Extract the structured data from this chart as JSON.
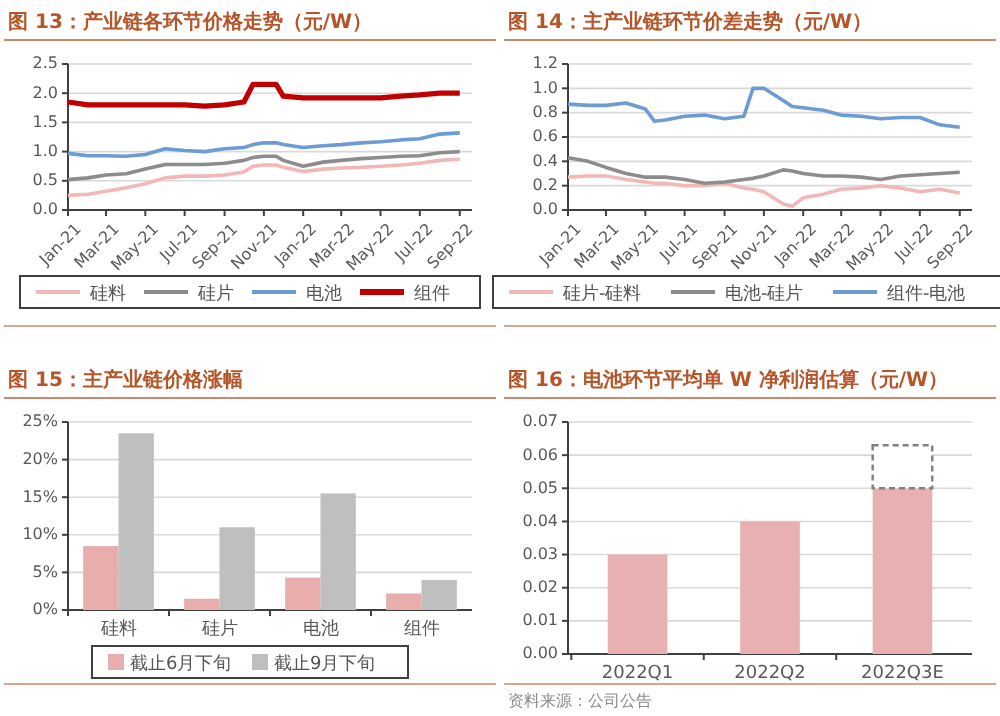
{
  "chart_data": [
    {
      "type": "line",
      "title": "图 13：产业链各环节价格走势（元/W）",
      "x": [
        "2021-01",
        "2021-02",
        "2021-03",
        "2021-04",
        "2021-05",
        "2021-06",
        "2021-07",
        "2021-08",
        "2021-09",
        "2021-10",
        "2021-10-15",
        "2021-11",
        "2021-11-20",
        "2021-12",
        "2022-01",
        "2022-02",
        "2022-03",
        "2022-04",
        "2022-05",
        "2022-06",
        "2022-07",
        "2022-08",
        "2022-09"
      ],
      "series": [
        {
          "name": "硅料",
          "color": "#f2b8b8",
          "values": [
            0.25,
            0.27,
            0.32,
            0.38,
            0.45,
            0.55,
            0.58,
            0.58,
            0.6,
            0.65,
            0.75,
            0.77,
            0.77,
            0.73,
            0.66,
            0.7,
            0.72,
            0.73,
            0.75,
            0.77,
            0.8,
            0.85,
            0.87
          ]
        },
        {
          "name": "硅片",
          "color": "#8c8c8c",
          "values": [
            0.52,
            0.55,
            0.6,
            0.62,
            0.7,
            0.78,
            0.78,
            0.78,
            0.8,
            0.85,
            0.9,
            0.92,
            0.92,
            0.85,
            0.75,
            0.82,
            0.85,
            0.88,
            0.9,
            0.92,
            0.93,
            0.98,
            1.0
          ]
        },
        {
          "name": "电池",
          "color": "#6d9bd4",
          "values": [
            0.97,
            0.93,
            0.93,
            0.92,
            0.95,
            1.05,
            1.02,
            1.0,
            1.05,
            1.07,
            1.12,
            1.15,
            1.15,
            1.12,
            1.07,
            1.1,
            1.12,
            1.15,
            1.17,
            1.2,
            1.22,
            1.3,
            1.32
          ]
        },
        {
          "name": "组件",
          "color": "#c00000",
          "values": [
            1.85,
            1.8,
            1.8,
            1.8,
            1.8,
            1.8,
            1.8,
            1.78,
            1.8,
            1.85,
            2.15,
            2.15,
            2.15,
            1.95,
            1.92,
            1.92,
            1.92,
            1.92,
            1.92,
            1.95,
            1.97,
            2.0,
            2.0
          ]
        }
      ],
      "xlim": [
        "2021-01-01",
        "2022-09-20"
      ],
      "xticks": [
        {
          "value": "2021-01",
          "label": "Jan-21"
        },
        {
          "value": "2021-03",
          "label": "Mar-21"
        },
        {
          "value": "2021-05",
          "label": "May-21"
        },
        {
          "value": "2021-07",
          "label": "Jul-21"
        },
        {
          "value": "2021-09",
          "label": "Sep-21"
        },
        {
          "value": "2021-11",
          "label": "Nov-21"
        },
        {
          "value": "2022-01",
          "label": "Jan-22"
        },
        {
          "value": "2022-03",
          "label": "Mar-22"
        },
        {
          "value": "2022-05",
          "label": "May-22"
        },
        {
          "value": "2022-07",
          "label": "Jul-22"
        },
        {
          "value": "2022-09",
          "label": "Sep-22"
        }
      ],
      "ylim": [
        0,
        2.5
      ],
      "yticks": [
        {
          "value": 0,
          "label": "0.0"
        },
        {
          "value": 0.5,
          "label": "0.5"
        },
        {
          "value": 1,
          "label": "1.0"
        },
        {
          "value": 1.5,
          "label": "1.5"
        },
        {
          "value": 2,
          "label": "2.0"
        },
        {
          "value": 2.5,
          "label": "2.5"
        }
      ],
      "grid": "y",
      "legend": "bottom"
    },
    {
      "type": "line",
      "title": "图 14：主产业链环节价差走势（元/W）",
      "x": [
        "2021-01",
        "2021-02",
        "2021-03",
        "2021-04",
        "2021-05",
        "2021-05-15",
        "2021-06",
        "2021-07",
        "2021-08",
        "2021-09",
        "2021-10",
        "2021-10-15",
        "2021-11",
        "2021-12",
        "2021-12-15",
        "2022-01",
        "2022-02",
        "2022-03",
        "2022-04",
        "2022-05",
        "2022-06",
        "2022-07",
        "2022-08",
        "2022-09"
      ],
      "series": [
        {
          "name": "硅片-硅料",
          "color": "#f2b8b8",
          "values": [
            0.27,
            0.28,
            0.28,
            0.25,
            0.23,
            0.22,
            0.22,
            0.2,
            0.2,
            0.22,
            0.18,
            0.17,
            0.15,
            0.05,
            0.03,
            0.1,
            0.13,
            0.17,
            0.18,
            0.2,
            0.18,
            0.15,
            0.17,
            0.14
          ]
        },
        {
          "name": "电池-硅片",
          "color": "#8c8c8c",
          "values": [
            0.43,
            0.4,
            0.35,
            0.3,
            0.27,
            0.27,
            0.27,
            0.25,
            0.22,
            0.23,
            0.25,
            0.26,
            0.28,
            0.33,
            0.32,
            0.3,
            0.28,
            0.28,
            0.27,
            0.25,
            0.28,
            0.29,
            0.3,
            0.31
          ]
        },
        {
          "name": "组件-电池",
          "color": "#6d9bd4",
          "values": [
            0.87,
            0.86,
            0.86,
            0.88,
            0.83,
            0.73,
            0.74,
            0.77,
            0.78,
            0.75,
            0.77,
            1.0,
            1.0,
            0.9,
            0.85,
            0.84,
            0.82,
            0.78,
            0.77,
            0.75,
            0.76,
            0.76,
            0.7,
            0.68
          ]
        }
      ],
      "xlim": [
        "2021-01-01",
        "2022-09-20"
      ],
      "xticks": [
        {
          "value": "2021-01",
          "label": "Jan-21"
        },
        {
          "value": "2021-03",
          "label": "Mar-21"
        },
        {
          "value": "2021-05",
          "label": "May-21"
        },
        {
          "value": "2021-07",
          "label": "Jul-21"
        },
        {
          "value": "2021-09",
          "label": "Sep-21"
        },
        {
          "value": "2021-11",
          "label": "Nov-21"
        },
        {
          "value": "2022-01",
          "label": "Jan-22"
        },
        {
          "value": "2022-03",
          "label": "Mar-22"
        },
        {
          "value": "2022-05",
          "label": "May-22"
        },
        {
          "value": "2022-07",
          "label": "Jul-22"
        },
        {
          "value": "2022-09",
          "label": "Sep-22"
        }
      ],
      "ylim": [
        0,
        1.2
      ],
      "yticks": [
        {
          "value": 0,
          "label": "0.0"
        },
        {
          "value": 0.2,
          "label": "0.2"
        },
        {
          "value": 0.4,
          "label": "0.4"
        },
        {
          "value": 0.6,
          "label": "0.6"
        },
        {
          "value": 0.8,
          "label": "0.8"
        },
        {
          "value": 1,
          "label": "1.0"
        },
        {
          "value": 1.2,
          "label": "1.2"
        }
      ],
      "grid": "y",
      "legend": "bottom"
    },
    {
      "type": "bar",
      "title": "图 15：主产业链价格涨幅",
      "categories": [
        "硅料",
        "硅片",
        "电池",
        "组件"
      ],
      "series": [
        {
          "name": "截止6月下旬",
          "color": "#e8aeae",
          "values": [
            8.5,
            1.5,
            4.3,
            2.2
          ]
        },
        {
          "name": "截止9月下旬",
          "color": "#bfbfbf",
          "values": [
            23.5,
            11,
            15.5,
            4
          ]
        }
      ],
      "ylim": [
        0,
        25
      ],
      "yticks": [
        {
          "value": 0,
          "label": "0%"
        },
        {
          "value": 5,
          "label": "5%"
        },
        {
          "value": 10,
          "label": "10%"
        },
        {
          "value": 15,
          "label": "15%"
        },
        {
          "value": 20,
          "label": "20%"
        },
        {
          "value": 25,
          "label": "25%"
        }
      ],
      "grid": "y",
      "legend": "bottom"
    },
    {
      "type": "bar",
      "title": "图 16：电池环节平均单 W 净利润估算（元/W）",
      "categories": [
        "2022Q1",
        "2022Q2",
        "2022Q3E"
      ],
      "stacked": true,
      "series": [
        {
          "color": "#e8b0b0",
          "values": [
            0.03,
            0.04,
            0.05
          ]
        },
        {
          "color": "#ffffff",
          "line_style": "dashed",
          "values": [
            null,
            null,
            0.013
          ]
        }
      ],
      "ylim": [
        0,
        0.07
      ],
      "yticks": [
        {
          "value": 0,
          "label": "0.00"
        },
        {
          "value": 0.01,
          "label": "0.01"
        },
        {
          "value": 0.02,
          "label": "0.02"
        },
        {
          "value": 0.03,
          "label": "0.03"
        },
        {
          "value": 0.04,
          "label": "0.04"
        },
        {
          "value": 0.05,
          "label": "0.05"
        },
        {
          "value": 0.06,
          "label": "0.06"
        },
        {
          "value": 0.07,
          "label": "0.07"
        }
      ],
      "grid": "y",
      "annotations": [
        "资料来源：公司公告"
      ]
    }
  ]
}
